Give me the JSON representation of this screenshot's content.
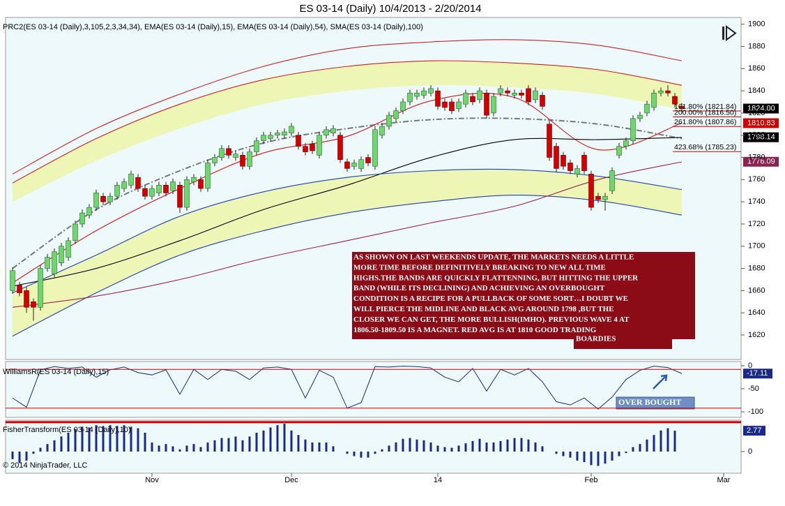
{
  "chart_data": [
    {
      "type": "candlestick",
      "title": "ES 03-14 (Daily)  10/4/2013 - 2/20/2014",
      "subtitle": "PRC2(ES 03-14 (Daily),3,105,2,3,34,34), EMA(ES 03-14 (Daily),15), EMA(ES 03-14 (Daily),54), SMA(ES 03-14 (Daily),100)",
      "open": [
        1660,
        1665,
        1660,
        1650,
        1645,
        1680,
        1675,
        1685,
        1690,
        1705,
        1720,
        1728,
        1735,
        1745,
        1740,
        1745,
        1752,
        1755,
        1762,
        1752,
        1745,
        1748,
        1755,
        1750,
        1755,
        1735,
        1758,
        1760,
        1752,
        1775,
        1780,
        1788,
        1780,
        1782,
        1772,
        1785,
        1795,
        1797,
        1800,
        1800,
        1802,
        1800,
        1790,
        1792,
        1782,
        1800,
        1802,
        1800,
        1776,
        1772,
        1770,
        1780,
        1772,
        1800,
        1808,
        1815,
        1822,
        1830,
        1835,
        1836,
        1838,
        1840,
        1830,
        1830,
        1824,
        1828,
        1835,
        1832,
        1838,
        1820,
        1838,
        1840,
        1836,
        1838,
        1842,
        1832,
        1836,
        1810,
        1790,
        1782,
        1775,
        1765,
        1782,
        1765,
        1745,
        1742,
        1750,
        1782,
        1790,
        1795,
        1815,
        1820,
        1825,
        1838,
        1840,
        1835,
        1826
      ],
      "high": [
        1681,
        1668,
        1663,
        1653,
        1683,
        1693,
        1698,
        1703,
        1708,
        1723,
        1733,
        1738,
        1751,
        1748,
        1748,
        1758,
        1761,
        1768,
        1765,
        1755,
        1755,
        1758,
        1758,
        1761,
        1758,
        1763,
        1765,
        1763,
        1778,
        1783,
        1791,
        1791,
        1786,
        1785,
        1788,
        1798,
        1803,
        1803,
        1805,
        1806,
        1811,
        1803,
        1793,
        1795,
        1803,
        1808,
        1809,
        1803,
        1779,
        1778,
        1781,
        1783,
        1808,
        1811,
        1821,
        1825,
        1833,
        1841,
        1841,
        1843,
        1845,
        1843,
        1833,
        1833,
        1833,
        1841,
        1838,
        1843,
        1841,
        1838,
        1845,
        1843,
        1841,
        1841,
        1845,
        1843,
        1839,
        1813,
        1793,
        1785,
        1778,
        1773,
        1785,
        1768,
        1748,
        1748,
        1771,
        1793,
        1798,
        1818,
        1821,
        1831,
        1841,
        1843,
        1845,
        1838,
        1829
      ],
      "low": [
        1657,
        1655,
        1640,
        1633,
        1642,
        1677,
        1672,
        1682,
        1687,
        1702,
        1717,
        1725,
        1732,
        1737,
        1737,
        1742,
        1749,
        1752,
        1749,
        1742,
        1742,
        1745,
        1745,
        1747,
        1730,
        1732,
        1755,
        1749,
        1749,
        1772,
        1777,
        1779,
        1777,
        1769,
        1769,
        1782,
        1792,
        1794,
        1797,
        1797,
        1799,
        1787,
        1782,
        1783,
        1779,
        1797,
        1799,
        1775,
        1767,
        1769,
        1767,
        1772,
        1769,
        1797,
        1805,
        1812,
        1819,
        1827,
        1832,
        1833,
        1835,
        1823,
        1822,
        1819,
        1821,
        1825,
        1827,
        1829,
        1815,
        1817,
        1835,
        1835,
        1833,
        1833,
        1827,
        1829,
        1823,
        1777,
        1767,
        1769,
        1765,
        1762,
        1765,
        1732,
        1739,
        1732,
        1747,
        1779,
        1787,
        1792,
        1812,
        1817,
        1822,
        1835,
        1835,
        1825,
        1821
      ],
      "close": [
        1678,
        1658,
        1645,
        1645,
        1680,
        1690,
        1695,
        1700,
        1705,
        1720,
        1730,
        1735,
        1748,
        1740,
        1745,
        1755,
        1758,
        1765,
        1752,
        1745,
        1752,
        1755,
        1748,
        1758,
        1735,
        1760,
        1762,
        1752,
        1775,
        1780,
        1788,
        1782,
        1783,
        1772,
        1785,
        1795,
        1800,
        1800,
        1802,
        1803,
        1808,
        1790,
        1785,
        1786,
        1800,
        1805,
        1806,
        1778,
        1770,
        1775,
        1778,
        1775,
        1805,
        1808,
        1818,
        1822,
        1830,
        1838,
        1838,
        1840,
        1842,
        1826,
        1825,
        1822,
        1830,
        1838,
        1830,
        1840,
        1818,
        1835,
        1842,
        1838,
        1838,
        1836,
        1830,
        1840,
        1826,
        1780,
        1770,
        1772,
        1768,
        1770,
        1768,
        1735,
        1742,
        1745,
        1768,
        1790,
        1795,
        1815,
        1818,
        1828,
        1838,
        1840,
        1838,
        1828,
        1824
      ],
      "up_color": "#6fd66f",
      "down_color": "#d40000",
      "xlim": [
        -1,
        104.5
      ],
      "ylim": [
        1598,
        1913
      ],
      "yticks": [
        1620,
        1640,
        1660,
        1680,
        1700,
        1720,
        1740,
        1760,
        1780,
        1800,
        1820,
        1840,
        1860,
        1880,
        1900
      ],
      "overlays": {
        "x": [
          0,
          12,
          24,
          36,
          48,
          60,
          72,
          84,
          96
        ],
        "bands": [
          {
            "color": "#eef6b6",
            "upper": [
              1757,
              1797,
              1828,
              1850,
              1862,
              1867,
              1865,
              1859,
              1845
            ],
            "lower": [
              1740,
              1777,
              1806,
              1828,
              1840,
              1845,
              1843,
              1837,
              1823
            ]
          },
          {
            "color": "#eef6b6",
            "upper": [
              1658,
              1692,
              1727,
              1749,
              1762,
              1768,
              1769,
              1763,
              1751
            ],
            "lower": [
              1619,
              1658,
              1692,
              1714,
              1730,
              1740,
              1746,
              1741,
              1728
            ]
          }
        ],
        "lines": [
          {
            "color": "#d42020",
            "values": [
              1765,
              1806,
              1837,
              1862,
              1878,
              1884,
              1886,
              1881,
              1867
            ]
          },
          {
            "color": "#d42020",
            "values": [
              1757,
              1797,
              1828,
              1850,
              1862,
              1867,
              1865,
              1859,
              1845
            ]
          },
          {
            "color": "#777777",
            "dash": true,
            "values": [
              1680,
              1733,
              1768,
              1793,
              1806,
              1814,
              1815,
              1810,
              1797
            ]
          },
          {
            "color": "#e01010",
            "values": [
              1667,
              1714,
              1752,
              1784,
              1799,
              1831,
              1834,
              1787,
              1811
            ]
          },
          {
            "color": "#000000",
            "values": [
              1664,
              1680,
              1705,
              1733,
              1755,
              1780,
              1796,
              1796,
              1798
            ]
          },
          {
            "color": "#1f3fbf",
            "values": [
              1658,
              1692,
              1727,
              1749,
              1762,
              1768,
              1769,
              1763,
              1751
            ]
          },
          {
            "color": "#1f3fbf",
            "values": [
              1619,
              1658,
              1692,
              1714,
              1730,
              1740,
              1746,
              1741,
              1728
            ]
          },
          {
            "color": "#a0204a",
            "values": [
              1645,
              1655,
              1670,
              1689,
              1705,
              1721,
              1736,
              1760,
              1776
            ]
          }
        ]
      },
      "fib_levels": [
        {
          "value": 1821.84,
          "label": "161.80% (1821.84)"
        },
        {
          "value": 1816.5,
          "label": "200.00% (1816.50)"
        },
        {
          "value": 1807.86,
          "label": "261.80% (1807.86)"
        },
        {
          "value": 1785.23,
          "label": "423.68% (1785.23)"
        }
      ],
      "price_markers": [
        {
          "value": 1824,
          "label": "1824.00",
          "color": "#000000"
        },
        {
          "value": 1810.83,
          "label": "1810.83",
          "color": "#d00000"
        },
        {
          "value": 1798.14,
          "label": "1798.14",
          "color": "#000000"
        },
        {
          "value": 1776.09,
          "label": "1776.09",
          "color": "#8b2252"
        }
      ],
      "annotation": [
        "AS SHOWN ON LAST WEEKENDS UPDATE, THE MARKETS NEEDS A LITTLE",
        "MORE TIME BEFORE DEFINITIVELY BREAKING TO NEW ALL TIME",
        "HIGHS.THE BANDS ARE QUICKLY FLATTENNING, BUT HITTING THE UPPER",
        "BAND (WHILE ITS DECLINING)  AND ACHIEVING AN OVERBOUGHT",
        "CONDITION  IS A RECIPE FOR A PULLBACK OF SOME SORT…I DOUBT WE",
        "WILL PIERCE THE MIDLINE AND BLACK AVG AROUND 1798 ,BUT THE",
        "CLOSER WE CAN GET, THE MORE BULLISH(IMHO). PREVIOUS WAVE 4 AT",
        "1806.50-1809.50 IS A MAGNET. RED AVG IS AT 1810    GOOD TRADING",
        "BOARDIES"
      ]
    },
    {
      "type": "line",
      "title": "WilliamsR(ES 03-14 (Daily),15)",
      "color": "#1a2a8a",
      "x": [
        0,
        2,
        4,
        6,
        8,
        10,
        12,
        14,
        16,
        18,
        20,
        22,
        24,
        26,
        28,
        30,
        32,
        34,
        36,
        38,
        40,
        42,
        44,
        46,
        48,
        50,
        52,
        54,
        56,
        58,
        60,
        62,
        64,
        66,
        68,
        70,
        72,
        74,
        76,
        78,
        80,
        82,
        84,
        86,
        88,
        90,
        92,
        94,
        96
      ],
      "values": [
        -70,
        -90,
        -9,
        -2,
        -6,
        -3,
        -25,
        -9,
        -3,
        -15,
        -20,
        -9,
        -62,
        -8,
        -30,
        -8,
        -12,
        -30,
        -5,
        -3,
        -8,
        -70,
        -10,
        -25,
        -92,
        -80,
        -2,
        -3,
        -1,
        -2,
        -5,
        -25,
        -35,
        -6,
        -55,
        -8,
        -20,
        -6,
        -35,
        -78,
        -85,
        -70,
        -94,
        -68,
        -30,
        -10,
        -1,
        -4,
        -17.11
      ],
      "xlim": [
        -1,
        104.5
      ],
      "ylim": [
        -112,
        9
      ],
      "yticks": [
        0,
        -50,
        -100
      ],
      "levels": [
        -8,
        -92
      ],
      "callout": "OVER BOUGHT"
    },
    {
      "type": "bar",
      "title": "FisherTransform(ES 03-14 (Daily),10)",
      "color": "#1a2a8a",
      "values": [
        -1,
        -1.5,
        -1.2,
        -0.3,
        0.5,
        1,
        1.5,
        2,
        2.5,
        3,
        3.3,
        3.2,
        3.5,
        3.4,
        3.5,
        3.4,
        3.5,
        3.3,
        3.1,
        2.5,
        1.2,
        0.8,
        1,
        0.7,
        0.3,
        0.8,
        1,
        0.6,
        1.2,
        1.5,
        1.8,
        1.8,
        2,
        1.5,
        2,
        2.5,
        2.8,
        3.2,
        3.5,
        3.7,
        2.8,
        2.2,
        1.6,
        1.2,
        1.2,
        1.2,
        0.7,
        0,
        -0.3,
        -0.6,
        -0.8,
        -0.8,
        -0.3,
        0.3,
        0.8,
        1.2,
        1.7,
        1.8,
        1.6,
        1.5,
        1.2,
        0.8,
        0.6,
        0.5,
        0.8,
        1.1,
        1.4,
        1.7,
        1.2,
        1.2,
        1.4,
        1.6,
        1.8,
        1.8,
        1.6,
        1.2,
        0.7,
        0,
        -0.3,
        -0.6,
        -0.8,
        -1.2,
        -1.4,
        -1.8,
        -1.9,
        -1.6,
        -1.2,
        -0.6,
        -0.2,
        0.6,
        1,
        1.6,
        2.2,
        2.8,
        3.1,
        2.77
      ],
      "xlim": [
        -1,
        104.5
      ],
      "ylim": [
        -2.87,
        4.17
      ],
      "yticks": [
        0
      ],
      "levels": [
        3.9
      ],
      "xticks": [
        {
          "value": 20,
          "label": "Nov"
        },
        {
          "value": 40,
          "label": "Dec"
        },
        {
          "value": 61,
          "label": "14"
        },
        {
          "value": 83,
          "label": "Feb"
        },
        {
          "value": 102,
          "label": "Mar"
        }
      ],
      "note": "© 2014 NinjaTrader, LLC"
    }
  ]
}
